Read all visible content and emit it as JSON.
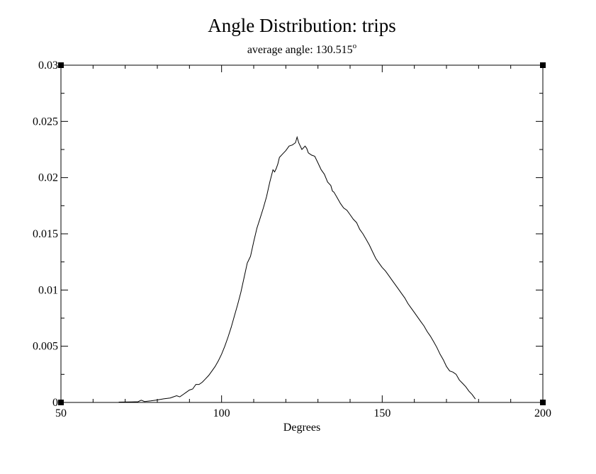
{
  "chart_data": {
    "type": "line",
    "title": "Angle Distribution: trips",
    "subtitle_prefix": "average angle: 130.515",
    "subtitle_degree": "o",
    "xlabel": "Degrees",
    "ylabel": "",
    "xlim": [
      50,
      200
    ],
    "ylim": [
      0,
      0.03
    ],
    "x_ticks": [
      {
        "value": 50,
        "label": "50"
      },
      {
        "value": 100,
        "label": "100"
      },
      {
        "value": 150,
        "label": "150"
      },
      {
        "value": 200,
        "label": "200"
      }
    ],
    "y_ticks": [
      {
        "value": 0,
        "label": "0"
      },
      {
        "value": 0.005,
        "label": "0.005"
      },
      {
        "value": 0.01,
        "label": "0.01"
      },
      {
        "value": 0.015,
        "label": "0.015"
      },
      {
        "value": 0.02,
        "label": "0.02"
      },
      {
        "value": 0.025,
        "label": "0.025"
      },
      {
        "value": 0.03,
        "label": "0.03"
      }
    ],
    "x_minor_step": 10,
    "y_minor_step": 0.0025,
    "grid": false,
    "line_color": "#000000",
    "series": [
      {
        "x": [
          68,
          70,
          72,
          74,
          75,
          76,
          78,
          80,
          82,
          84,
          85,
          86,
          87,
          88,
          89,
          90,
          91,
          92,
          93,
          94,
          95,
          96,
          97,
          98,
          99,
          100,
          101,
          102,
          103,
          104,
          105,
          106,
          107,
          108,
          108.5,
          109,
          110,
          111,
          112,
          113,
          114,
          115,
          116,
          116.5,
          117,
          117.5,
          118,
          119,
          120,
          121,
          122,
          123,
          123.5,
          124,
          125,
          126,
          126.5,
          127,
          128,
          129,
          130,
          131,
          132,
          133,
          134,
          134.5,
          135,
          136,
          137,
          138,
          139,
          140,
          141,
          142,
          143,
          144,
          145,
          146,
          147,
          148,
          149,
          150,
          151,
          152,
          153,
          154,
          155,
          156,
          157,
          158,
          159,
          160,
          161,
          162,
          163,
          164,
          165,
          166,
          167,
          168,
          169,
          170,
          171,
          172,
          173,
          174,
          175,
          176,
          177,
          178,
          179
        ],
        "y": [
          3e-05,
          4e-05,
          5e-05,
          6e-05,
          0.0002,
          8e-05,
          0.00014,
          0.00022,
          0.00032,
          0.0004,
          0.0005,
          0.0006,
          0.0005,
          0.0007,
          0.0009,
          0.0011,
          0.0012,
          0.0016,
          0.0016,
          0.0018,
          0.0021,
          0.0024,
          0.0028,
          0.0032,
          0.0037,
          0.0043,
          0.005,
          0.0058,
          0.0067,
          0.0077,
          0.0087,
          0.0098,
          0.0111,
          0.0124,
          0.0127,
          0.013,
          0.0143,
          0.0155,
          0.0164,
          0.0173,
          0.0183,
          0.0196,
          0.0207,
          0.0205,
          0.0208,
          0.0212,
          0.0218,
          0.0221,
          0.0224,
          0.0228,
          0.0229,
          0.0231,
          0.0236,
          0.0231,
          0.0225,
          0.0228,
          0.0226,
          0.0222,
          0.022,
          0.0219,
          0.0213,
          0.0207,
          0.0203,
          0.0196,
          0.0193,
          0.0188,
          0.0187,
          0.0182,
          0.0177,
          0.0173,
          0.0171,
          0.0167,
          0.0163,
          0.016,
          0.0154,
          0.015,
          0.0145,
          0.014,
          0.0134,
          0.0128,
          0.0124,
          0.012,
          0.0117,
          0.0113,
          0.0109,
          0.0105,
          0.0101,
          0.0097,
          0.0093,
          0.0088,
          0.0084,
          0.008,
          0.0076,
          0.0072,
          0.0068,
          0.0063,
          0.0059,
          0.0054,
          0.0049,
          0.0043,
          0.0038,
          0.0032,
          0.0028,
          0.0027,
          0.0025,
          0.002,
          0.0017,
          0.0014,
          0.001,
          0.0007,
          0.0003
        ]
      }
    ]
  }
}
